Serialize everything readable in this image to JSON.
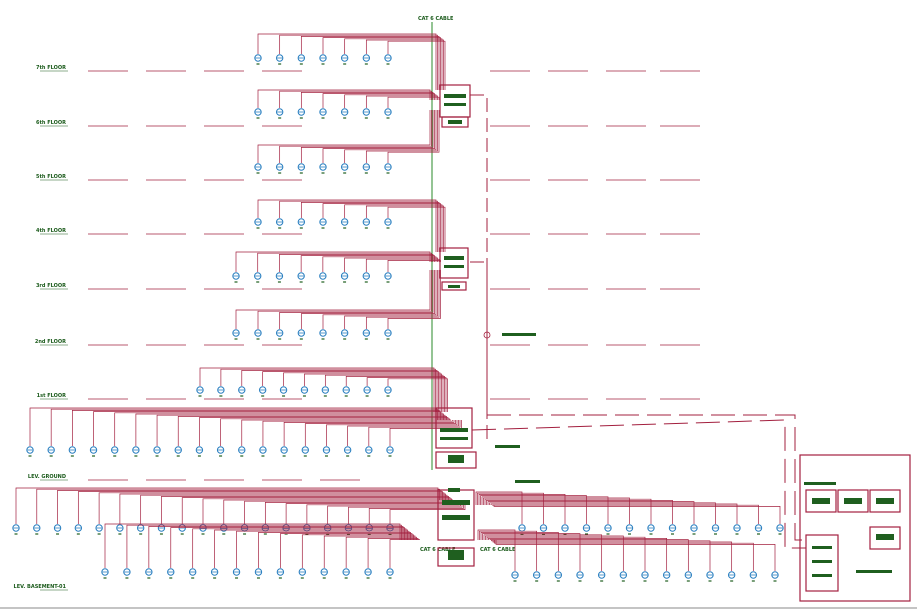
{
  "riser": {
    "top_label": "CAT 6 CABLE",
    "floors": [
      {
        "label": "7th FLOOR"
      },
      {
        "label": "6th FLOOR"
      },
      {
        "label": "5th FLOOR"
      },
      {
        "label": "4th FLOOR"
      },
      {
        "label": "3rd FLOOR"
      },
      {
        "label": "2nd FLOOR"
      },
      {
        "label": "1st FLOOR"
      },
      {
        "label": "LEV. GROUND"
      },
      {
        "label": "LEV. BASEMENT-01"
      }
    ],
    "bottom_labels": [
      "CAT 6 CABLE",
      "CAT 6 CABLE"
    ]
  }
}
